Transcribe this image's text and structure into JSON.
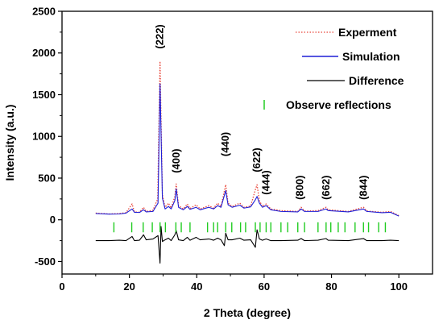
{
  "chart_data": {
    "type": "line",
    "title": "",
    "xlabel": "2 Theta (degree)",
    "ylabel": "Intensity (a.u.)",
    "xlim": [
      0,
      110
    ],
    "ylim": [
      -650,
      2500
    ],
    "x_ticks": [
      0,
      20,
      40,
      60,
      80,
      100
    ],
    "y_ticks": [
      -500,
      0,
      500,
      1000,
      1500,
      2000,
      2500
    ],
    "grid": false,
    "legend_position": "top-right",
    "colors": {
      "experiment": "#e8463a",
      "simulation": "#1f1fd6",
      "difference": "#000000",
      "reflections": "#22cc22"
    },
    "series": [
      {
        "name": "Experment",
        "style": "dotted",
        "points": [
          [
            10,
            80
          ],
          [
            14,
            70
          ],
          [
            17,
            75
          ],
          [
            19,
            85
          ],
          [
            20.8,
            190
          ],
          [
            21.5,
            95
          ],
          [
            23,
            90
          ],
          [
            24.2,
            150
          ],
          [
            25,
            100
          ],
          [
            27,
            115
          ],
          [
            28.4,
            250
          ],
          [
            29.1,
            1900
          ],
          [
            29.8,
            300
          ],
          [
            30.6,
            150
          ],
          [
            31.6,
            200
          ],
          [
            32.4,
            140
          ],
          [
            33.5,
            280
          ],
          [
            33.9,
            430
          ],
          [
            34.6,
            170
          ],
          [
            36,
            130
          ],
          [
            37.2,
            190
          ],
          [
            38,
            135
          ],
          [
            39.8,
            180
          ],
          [
            41,
            130
          ],
          [
            43.6,
            170
          ],
          [
            45,
            140
          ],
          [
            46.2,
            200
          ],
          [
            47.2,
            160
          ],
          [
            48.6,
            420
          ],
          [
            49.3,
            200
          ],
          [
            50.5,
            160
          ],
          [
            52.8,
            200
          ],
          [
            54,
            150
          ],
          [
            56,
            165
          ],
          [
            57.4,
            360
          ],
          [
            57.9,
            420
          ],
          [
            58.6,
            230
          ],
          [
            59.5,
            160
          ],
          [
            60.6,
            190
          ],
          [
            62,
            130
          ],
          [
            65,
            110
          ],
          [
            70,
            100
          ],
          [
            71,
            150
          ],
          [
            72,
            105
          ],
          [
            76,
            110
          ],
          [
            78.4,
            150
          ],
          [
            79,
            120
          ],
          [
            85,
            100
          ],
          [
            89.5,
            150
          ],
          [
            90.5,
            105
          ],
          [
            95,
            90
          ],
          [
            97.5,
            100
          ],
          [
            100,
            50
          ]
        ]
      },
      {
        "name": "Simulation",
        "style": "solid",
        "points": [
          [
            10,
            75
          ],
          [
            14,
            68
          ],
          [
            17,
            70
          ],
          [
            19,
            80
          ],
          [
            20.8,
            130
          ],
          [
            21.5,
            90
          ],
          [
            23,
            88
          ],
          [
            24.2,
            120
          ],
          [
            25,
            95
          ],
          [
            27,
            100
          ],
          [
            28.5,
            200
          ],
          [
            29.1,
            1630
          ],
          [
            29.8,
            260
          ],
          [
            30.6,
            130
          ],
          [
            31.6,
            160
          ],
          [
            32.4,
            130
          ],
          [
            33.5,
            230
          ],
          [
            33.9,
            370
          ],
          [
            34.6,
            150
          ],
          [
            36,
            120
          ],
          [
            37.2,
            160
          ],
          [
            38,
            125
          ],
          [
            39.8,
            150
          ],
          [
            41,
            120
          ],
          [
            43.6,
            150
          ],
          [
            45,
            130
          ],
          [
            46.2,
            170
          ],
          [
            47.2,
            150
          ],
          [
            48.6,
            350
          ],
          [
            49.3,
            180
          ],
          [
            50.5,
            150
          ],
          [
            52.8,
            175
          ],
          [
            54,
            140
          ],
          [
            56,
            155
          ],
          [
            57.4,
            240
          ],
          [
            57.9,
            280
          ],
          [
            58.6,
            200
          ],
          [
            59.5,
            150
          ],
          [
            60.6,
            170
          ],
          [
            62,
            120
          ],
          [
            65,
            100
          ],
          [
            70,
            95
          ],
          [
            71,
            130
          ],
          [
            72,
            100
          ],
          [
            76,
            100
          ],
          [
            78.4,
            130
          ],
          [
            79,
            110
          ],
          [
            85,
            95
          ],
          [
            89.5,
            130
          ],
          [
            90.5,
            100
          ],
          [
            95,
            85
          ],
          [
            97.5,
            90
          ],
          [
            100,
            45
          ]
        ]
      },
      {
        "name": "Difference",
        "style": "solid",
        "points": [
          [
            10,
            -250
          ],
          [
            14,
            -250
          ],
          [
            17,
            -245
          ],
          [
            19,
            -250
          ],
          [
            20.8,
            -200
          ],
          [
            21.5,
            -250
          ],
          [
            23,
            -245
          ],
          [
            24.2,
            -180
          ],
          [
            25,
            -240
          ],
          [
            27,
            -230
          ],
          [
            28.5,
            -190
          ],
          [
            29.1,
            -520
          ],
          [
            29.4,
            -80
          ],
          [
            29.8,
            -260
          ],
          [
            30.6,
            -240
          ],
          [
            31.6,
            -220
          ],
          [
            32.4,
            -250
          ],
          [
            33.5,
            -180
          ],
          [
            33.9,
            -130
          ],
          [
            34.6,
            -240
          ],
          [
            36,
            -250
          ],
          [
            37.2,
            -210
          ],
          [
            38,
            -245
          ],
          [
            39.8,
            -210
          ],
          [
            41,
            -240
          ],
          [
            43.6,
            -230
          ],
          [
            45,
            -245
          ],
          [
            46.2,
            -220
          ],
          [
            47.2,
            -240
          ],
          [
            48.2,
            -310
          ],
          [
            48.6,
            -160
          ],
          [
            49.3,
            -240
          ],
          [
            50.5,
            -240
          ],
          [
            52.8,
            -220
          ],
          [
            54,
            -245
          ],
          [
            56,
            -240
          ],
          [
            57.4,
            -330
          ],
          [
            57.9,
            -120
          ],
          [
            58.6,
            -230
          ],
          [
            59.5,
            -245
          ],
          [
            60.6,
            -230
          ],
          [
            62,
            -250
          ],
          [
            65,
            -250
          ],
          [
            70,
            -245
          ],
          [
            71,
            -225
          ],
          [
            72,
            -250
          ],
          [
            76,
            -245
          ],
          [
            78.4,
            -225
          ],
          [
            79,
            -245
          ],
          [
            85,
            -250
          ],
          [
            89.5,
            -225
          ],
          [
            90.5,
            -250
          ],
          [
            95,
            -250
          ],
          [
            97.5,
            -245
          ],
          [
            100,
            -250
          ]
        ]
      }
    ],
    "legend_reflections_label": "Observe reflections",
    "reflections": {
      "y_top": -30,
      "y_bottom": -150,
      "x": [
        15.4,
        20.7,
        24.1,
        26.8,
        29.1,
        30.7,
        33.8,
        35.4,
        38.0,
        43.2,
        45.0,
        46.2,
        48.6,
        50.4,
        53.0,
        54.5,
        57.4,
        58.8,
        60.6,
        62.0,
        65.0,
        67.0,
        70.0,
        72.0,
        76.0,
        78.4,
        79.8,
        82.0,
        84.0,
        87.0,
        89.5,
        91.0,
        94.0,
        96.0
      ]
    },
    "peak_labels": [
      {
        "text": "(222)",
        "x": 29.1,
        "y": 2050
      },
      {
        "text": "(400)",
        "x": 33.9,
        "y": 560
      },
      {
        "text": "(440)",
        "x": 48.6,
        "y": 760
      },
      {
        "text": "(622)",
        "x": 57.9,
        "y": 570
      },
      {
        "text": "(444)",
        "x": 60.6,
        "y": 300
      },
      {
        "text": "(800)",
        "x": 70.7,
        "y": 240
      },
      {
        "text": "(662)",
        "x": 78.4,
        "y": 240
      },
      {
        "text": "(844)",
        "x": 89.5,
        "y": 240
      }
    ]
  }
}
